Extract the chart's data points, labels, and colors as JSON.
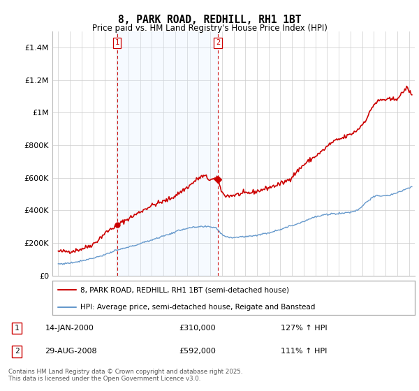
{
  "title": "8, PARK ROAD, REDHILL, RH1 1BT",
  "subtitle": "Price paid vs. HM Land Registry's House Price Index (HPI)",
  "property_label": "8, PARK ROAD, REDHILL, RH1 1BT (semi-detached house)",
  "hpi_label": "HPI: Average price, semi-detached house, Reigate and Banstead",
  "sale1_date": "14-JAN-2000",
  "sale1_price": "£310,000",
  "sale1_hpi": "127% ↑ HPI",
  "sale2_date": "29-AUG-2008",
  "sale2_price": "£592,000",
  "sale2_hpi": "111% ↑ HPI",
  "footer": "Contains HM Land Registry data © Crown copyright and database right 2025.\nThis data is licensed under the Open Government Licence v3.0.",
  "ylim": [
    0,
    1500000
  ],
  "yticks": [
    0,
    200000,
    400000,
    600000,
    800000,
    1000000,
    1200000,
    1400000
  ],
  "ytick_labels": [
    "£0",
    "£200K",
    "£400K",
    "£600K",
    "£800K",
    "£1M",
    "£1.2M",
    "£1.4M"
  ],
  "property_color": "#cc0000",
  "hpi_color": "#6699cc",
  "vline_color": "#cc0000",
  "shade_color": "#ddeeff",
  "grid_color": "#cccccc",
  "background_color": "#ffffff",
  "sale1_x": 2000.04,
  "sale1_y": 310000,
  "sale2_x": 2008.66,
  "sale2_y": 592000,
  "xlim": [
    1994.5,
    2025.5
  ]
}
